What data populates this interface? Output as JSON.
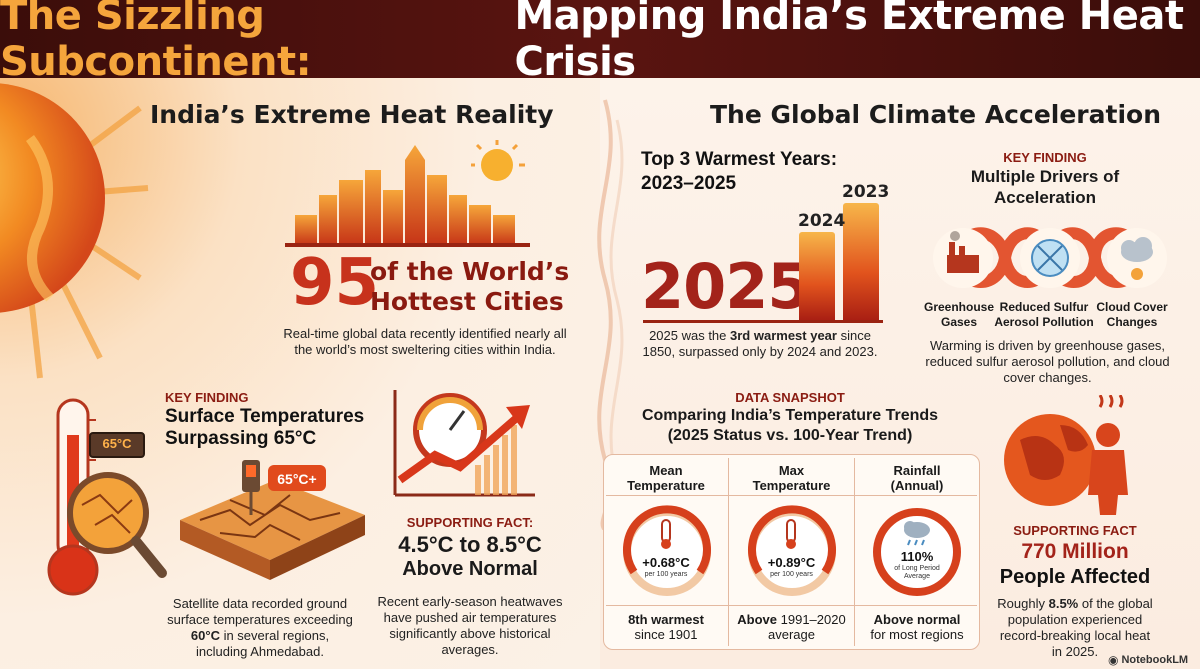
{
  "header": {
    "title_part1": "The Sizzling Subcontinent:",
    "title_part2": "Mapping India’s Extreme Heat Crisis"
  },
  "left": {
    "section_title": "India’s Extreme Heat Reality",
    "hottest": {
      "number": "95",
      "line1": "of the World’s",
      "line2": "Hottest Cities",
      "description": "Real-time global data recently identified nearly all the world’s most sweltering cities within India."
    },
    "surface": {
      "kicker": "KEY FINDING",
      "title_line1": "Surface Temperatures",
      "title_line2": "Surpassing 65°C",
      "thermo_readout": "65°C",
      "sign_readout": "65°C+",
      "desc_line1": "Satellite data recorded ground",
      "desc_line2": "surface temperatures exceeding",
      "desc_bold": "60°C",
      "desc_line3_rest": " in several regions,",
      "desc_line4": "including Ahmedabad."
    },
    "air": {
      "kicker": "SUPPORTING FACT:",
      "value": "4.5°C to 8.5°C",
      "label": "Above Normal",
      "description": "Recent early-season heatwaves have pushed air temperatures significantly above historical averages."
    }
  },
  "right": {
    "section_title": "The Global Climate Acceleration",
    "warmest": {
      "title_line1": "Top 3 Warmest Years:",
      "title_line2": "2023–2025",
      "big_year": "2025",
      "bar_labels": [
        "2024",
        "2023"
      ],
      "desc_pre": "2025 was the ",
      "desc_bold": "3rd warmest year",
      "desc_post": " since",
      "desc_line2": "1850, surpassed only by 2024 and 2023."
    },
    "drivers": {
      "kicker": "KEY FINDING",
      "title_line1": "Multiple Drivers of",
      "title_line2": "Acceleration",
      "items": [
        {
          "line1": "Greenhouse",
          "line2": "Gases"
        },
        {
          "line1": "Reduced Sulfur",
          "line2": "Aerosol Pollution"
        },
        {
          "line1": "Cloud Cover",
          "line2": "Changes"
        }
      ],
      "description": "Warming is driven by greenhouse gases, reduced sulfur aerosol pollution, and cloud cover changes."
    },
    "snapshot": {
      "kicker": "DATA SNAPSHOT",
      "title_line1": "Comparing India’s Temperature Trends",
      "title_line2": "(2025 Status vs. 100-Year Trend)",
      "columns": [
        {
          "head1": "Mean",
          "head2": "Temperature",
          "value": "+0.68°C",
          "sub": "per 100 years",
          "foot_bold": "8th warmest",
          "foot2": "since 1901"
        },
        {
          "head1": "Max",
          "head2": "Temperature",
          "value": "+0.89°C",
          "sub": "per 100 years",
          "foot_bold": "Above",
          "foot_rest": " 1991–2020",
          "foot2": "average"
        },
        {
          "head1": "Rainfall",
          "head2": "(Annual)",
          "value": "110%",
          "sub1": "of Long Period",
          "sub2": "Average",
          "foot_bold": "Above normal",
          "foot2": "for most regions"
        }
      ]
    },
    "people": {
      "kicker": "SUPPORTING FACT",
      "value": "770 Million",
      "label": "People Affected",
      "desc_pre": "Roughly ",
      "desc_bold": "8.5%",
      "desc_post": " of the global",
      "desc_line2": "population experienced",
      "desc_line3": "record-breaking local heat",
      "desc_line4": "in 2025."
    }
  },
  "watermark": "NotebookLM",
  "colors": {
    "banner": "#4a110d",
    "accent_orange": "#f5a53c",
    "accent_red": "#a3231a"
  }
}
